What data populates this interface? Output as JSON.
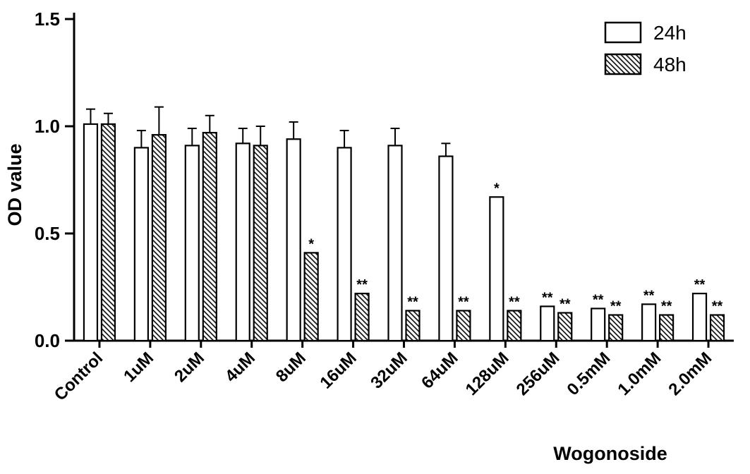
{
  "chart_data": {
    "type": "bar",
    "title": "",
    "xlabel": "Wogonoside",
    "ylabel": "OD value",
    "ylim": [
      0,
      1.5
    ],
    "yticks": [
      0,
      0.5,
      1,
      1.5
    ],
    "ytick_labels": [
      "0.0",
      "0.5",
      "1.0",
      "1.5"
    ],
    "categories": [
      "Control",
      "1uM",
      "2uM",
      "4uM",
      "8uM",
      "16uM",
      "32uM",
      "64uM",
      "128uM",
      "256uM",
      "0.5mM",
      "1.0mM",
      "2.0mM"
    ],
    "grid": false,
    "legend_position": "top-right",
    "series": [
      {
        "name": "24h",
        "style": "open",
        "values": [
          1.01,
          0.9,
          0.91,
          0.92,
          0.94,
          0.9,
          0.91,
          0.86,
          0.67,
          0.16,
          0.15,
          0.17,
          0.22
        ],
        "errors": [
          0.07,
          0.08,
          0.08,
          0.07,
          0.08,
          0.08,
          0.08,
          0.06,
          0,
          0,
          0,
          0,
          0
        ],
        "significance": [
          "",
          "",
          "",
          "",
          "",
          "",
          "",
          "",
          "*",
          "**",
          "**",
          "**",
          "**"
        ]
      },
      {
        "name": "48h",
        "style": "hatched",
        "values": [
          1.01,
          0.96,
          0.97,
          0.91,
          0.41,
          0.22,
          0.14,
          0.14,
          0.14,
          0.13,
          0.12,
          0.12,
          0.12
        ],
        "errors": [
          0.05,
          0.13,
          0.08,
          0.09,
          0,
          0,
          0,
          0,
          0,
          0,
          0,
          0,
          0
        ],
        "significance": [
          "",
          "",
          "",
          "",
          "*",
          "**",
          "**",
          "**",
          "**",
          "**",
          "**",
          "**",
          "**"
        ]
      }
    ],
    "colors": {
      "axis": "#000000",
      "bar_fill": "#ffffff",
      "bar_stroke": "#000000",
      "background": "#ffffff"
    }
  }
}
